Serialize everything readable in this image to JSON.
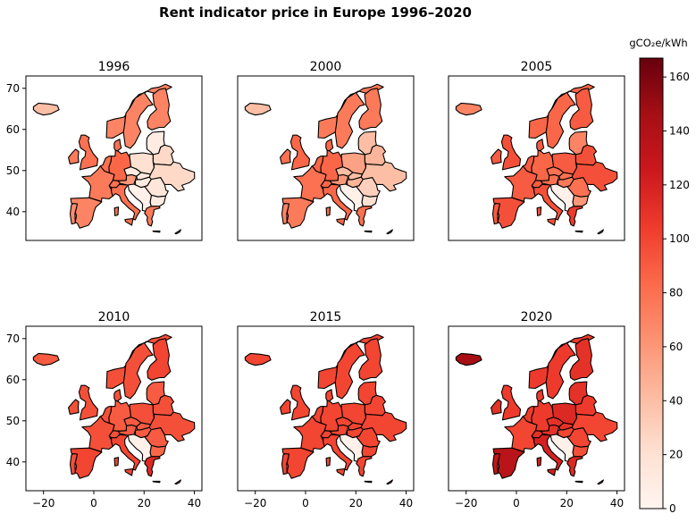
{
  "title": "Rent indicator price in Europe 1996–2020",
  "colorbar": {
    "label": "gCO₂e/kWh",
    "min": 0,
    "max": 167,
    "ticks": [
      0,
      20,
      40,
      60,
      80,
      100,
      120,
      140,
      160
    ],
    "tick_labels": [
      "0",
      "20",
      "40",
      "60",
      "80",
      "100",
      "120",
      "140",
      "160"
    ],
    "colormap": "Reds",
    "colors": [
      "#fff5f0",
      "#fee0d2",
      "#fcbba1",
      "#fc9272",
      "#fb6a4a",
      "#ef3b2c",
      "#cb181d",
      "#a50f15",
      "#67000d"
    ]
  },
  "axes": {
    "y_ticks": [
      40,
      50,
      60,
      70
    ],
    "y_tick_labels": [
      "40",
      "50",
      "60",
      "70"
    ],
    "x_ticks": [
      -20,
      0,
      20,
      40
    ],
    "x_tick_labels": [
      "−20",
      "0",
      "20",
      "40"
    ],
    "y_labels_on": "left column",
    "x_labels_on": "bottom row"
  },
  "chart_data": {
    "type": "choropleth",
    "xlim": [
      -27,
      43
    ],
    "ylim": [
      33,
      73
    ],
    "panels": [
      {
        "title": "1996",
        "values": {
          "iceland": 40,
          "norway": 70,
          "sweden": 70,
          "finland": 70,
          "uk": 80,
          "ireland": 75,
          "france": 75,
          "spain": 70,
          "portugal": 65,
          "italy": 80,
          "germany": 85,
          "benelux": 80,
          "denmark": 80,
          "switzerland": 80,
          "austria": 60,
          "poland": 20,
          "czechia": 10,
          "hungary": 10,
          "romania": 15,
          "bulgaria": 10,
          "balkans": 5,
          "greece": 75,
          "baltics": 10,
          "belarus": 25,
          "ukraine": 25,
          "cyprus": 40
        }
      },
      {
        "title": "2000",
        "values": {
          "iceland": 40,
          "norway": 75,
          "sweden": 75,
          "finland": 75,
          "uk": 85,
          "ireland": 80,
          "france": 80,
          "spain": 75,
          "portugal": 70,
          "italy": 85,
          "germany": 85,
          "benelux": 85,
          "denmark": 85,
          "switzerland": 85,
          "austria": 60,
          "poland": 55,
          "czechia": 40,
          "hungary": 45,
          "romania": 30,
          "bulgaria": 20,
          "balkans": 5,
          "greece": 80,
          "baltics": 40,
          "belarus": 45,
          "ukraine": 40,
          "cyprus": 60
        }
      },
      {
        "title": "2005",
        "values": {
          "iceland": 70,
          "norway": 85,
          "sweden": 85,
          "finland": 90,
          "uk": 95,
          "ireland": 90,
          "france": 90,
          "spain": 95,
          "portugal": 90,
          "italy": 95,
          "germany": 85,
          "benelux": 90,
          "denmark": 90,
          "switzerland": 90,
          "austria": 80,
          "poland": 90,
          "czechia": 80,
          "hungary": 75,
          "romania": 80,
          "bulgaria": 60,
          "balkans": 5,
          "greece": 105,
          "baltics": 70,
          "belarus": 95,
          "ukraine": 95,
          "cyprus": 70
        }
      },
      {
        "title": "2010",
        "values": {
          "iceland": 90,
          "norway": 95,
          "sweden": 95,
          "finland": 100,
          "uk": 95,
          "ireland": 95,
          "france": 95,
          "spain": 100,
          "portugal": 95,
          "italy": 100,
          "germany": 90,
          "benelux": 95,
          "denmark": 95,
          "switzerland": 95,
          "austria": 90,
          "poland": 95,
          "czechia": 90,
          "hungary": 90,
          "romania": 90,
          "bulgaria": 85,
          "balkans": 5,
          "greece": 115,
          "baltics": 90,
          "belarus": 95,
          "ukraine": 95,
          "cyprus": 90
        }
      },
      {
        "title": "2015",
        "values": {
          "iceland": 100,
          "norway": 100,
          "sweden": 100,
          "finland": 100,
          "uk": 100,
          "ireland": 100,
          "france": 100,
          "spain": 100,
          "portugal": 100,
          "italy": 100,
          "germany": 100,
          "benelux": 100,
          "denmark": 100,
          "switzerland": 100,
          "austria": 100,
          "poland": 100,
          "czechia": 100,
          "hungary": 100,
          "romania": 100,
          "bulgaria": 100,
          "balkans": 5,
          "greece": 100,
          "baltics": 100,
          "belarus": 100,
          "ukraine": 100,
          "cyprus": 100
        }
      },
      {
        "title": "2020",
        "values": {
          "iceland": 145,
          "norway": 105,
          "sweden": 105,
          "finland": 110,
          "uk": 105,
          "ireland": 110,
          "france": 100,
          "spain": 135,
          "portugal": 130,
          "italy": 120,
          "germany": 105,
          "benelux": 105,
          "denmark": 105,
          "switzerland": 110,
          "austria": 110,
          "poland": 115,
          "czechia": 110,
          "hungary": 100,
          "romania": 100,
          "bulgaria": 95,
          "balkans": 5,
          "greece": 115,
          "baltics": 110,
          "belarus": 105,
          "ukraine": 100,
          "cyprus": 110
        }
      }
    ]
  }
}
